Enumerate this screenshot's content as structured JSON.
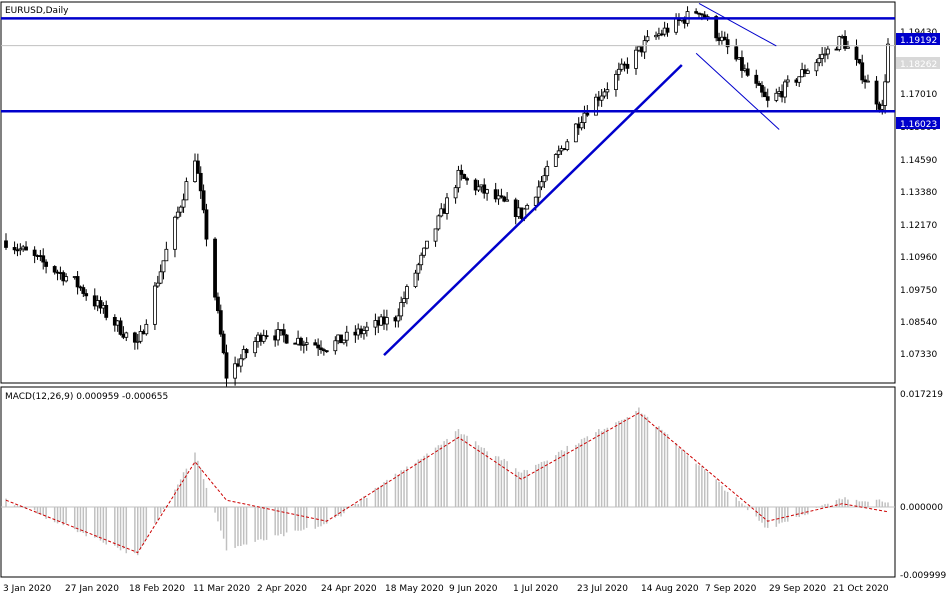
{
  "main_chart": {
    "title": "EURUSD,Daily",
    "y_ticks": [
      "1.19430",
      "1.18262",
      "1.17010",
      "1.15800",
      "1.14590",
      "1.13380",
      "1.12170",
      "1.10960",
      "1.09750",
      "1.08540",
      "1.07330"
    ],
    "levels": {
      "resistance_label": "1.19192",
      "price_label": "1.18262",
      "support_label": "1.16023"
    }
  },
  "macd_panel": {
    "title": "MACD(12,26,9) 0.000959 -0.000655",
    "y_ticks": [
      "0.017219",
      "0.000000",
      "-0.009999"
    ]
  },
  "x_axis": {
    "labels": [
      "3 Jan 2020",
      "27 Jan 2020",
      "18 Feb 2020",
      "11 Mar 2020",
      "2 Apr 2020",
      "24 Apr 2020",
      "18 May 2020",
      "9 Jun 2020",
      "1 Jul 2020",
      "23 Jul 2020",
      "14 Aug 2020",
      "7 Sep 2020",
      "29 Sep 2020",
      "21 Oct 2020"
    ]
  },
  "colors": {
    "candle": "#000000",
    "trendline": "#0000cc",
    "channel": "#0000cc",
    "level_line": "#0000cc",
    "price_line": "#c0c0c0",
    "histogram": "#c0c0c0",
    "signal": "#cc0000",
    "label_bg": "#0000cc"
  },
  "chart_data": [
    {
      "type": "candlestick",
      "symbol": "EURUSD",
      "timeframe": "Daily",
      "ylim": [
        1.0675,
        1.1975
      ],
      "x_range": [
        "2020-01-03",
        "2020-11-06"
      ],
      "key_points": [
        {
          "date": "2020-01-03",
          "close": 1.116
        },
        {
          "date": "2020-01-27",
          "close": 1.102
        },
        {
          "date": "2020-02-18",
          "close": 1.08
        },
        {
          "date": "2020-03-09",
          "close": 1.145
        },
        {
          "date": "2020-03-20",
          "close": 1.07
        },
        {
          "date": "2020-04-02",
          "close": 1.085
        },
        {
          "date": "2020-04-24",
          "close": 1.08
        },
        {
          "date": "2020-05-18",
          "close": 1.09
        },
        {
          "date": "2020-06-09",
          "close": 1.138
        },
        {
          "date": "2020-07-01",
          "close": 1.125
        },
        {
          "date": "2020-07-23",
          "close": 1.16
        },
        {
          "date": "2020-08-14",
          "close": 1.184
        },
        {
          "date": "2020-09-01",
          "close": 1.195
        },
        {
          "date": "2020-09-25",
          "close": 1.163
        },
        {
          "date": "2020-10-21",
          "close": 1.185
        },
        {
          "date": "2020-11-04",
          "close": 1.161
        },
        {
          "date": "2020-11-06",
          "close": 1.1826
        }
      ],
      "horizontal_levels": [
        1.19192,
        1.16023
      ],
      "current_price": 1.18262,
      "trendline": {
        "from": {
          "date": "2020-05-14",
          "price": 1.077
        },
        "to": {
          "date": "2020-08-26",
          "price": 1.176
        }
      },
      "channel": [
        {
          "from": {
            "date": "2020-09-01",
            "price": 1.197
          },
          "to": {
            "date": "2020-09-28",
            "price": 1.1825
          }
        },
        {
          "from": {
            "date": "2020-08-31",
            "price": 1.18
          },
          "to": {
            "date": "2020-09-29",
            "price": 1.154
          }
        }
      ]
    },
    {
      "type": "bar",
      "name": "MACD(12,26,9)",
      "ylim": [
        -0.009999,
        0.017219
      ],
      "macd": 0.000959,
      "signal": -0.000655,
      "key_points": [
        {
          "date": "2020-01-03",
          "macd": 0.001,
          "signal": 0.001
        },
        {
          "date": "2020-02-18",
          "macd": -0.007,
          "signal": -0.0065
        },
        {
          "date": "2020-03-09",
          "macd": 0.008,
          "signal": 0.0065
        },
        {
          "date": "2020-03-20",
          "macd": -0.006,
          "signal": 0.001
        },
        {
          "date": "2020-04-24",
          "macd": -0.0025,
          "signal": -0.002
        },
        {
          "date": "2020-06-09",
          "macd": 0.011,
          "signal": 0.01
        },
        {
          "date": "2020-07-01",
          "macd": 0.005,
          "signal": 0.004
        },
        {
          "date": "2020-08-11",
          "macd": 0.014,
          "signal": 0.0135
        },
        {
          "date": "2020-09-25",
          "macd": -0.003,
          "signal": -0.002
        },
        {
          "date": "2020-10-21",
          "macd": 0.0012,
          "signal": 0.0005
        },
        {
          "date": "2020-11-06",
          "macd": 0.000959,
          "signal": -0.000655
        }
      ]
    }
  ]
}
